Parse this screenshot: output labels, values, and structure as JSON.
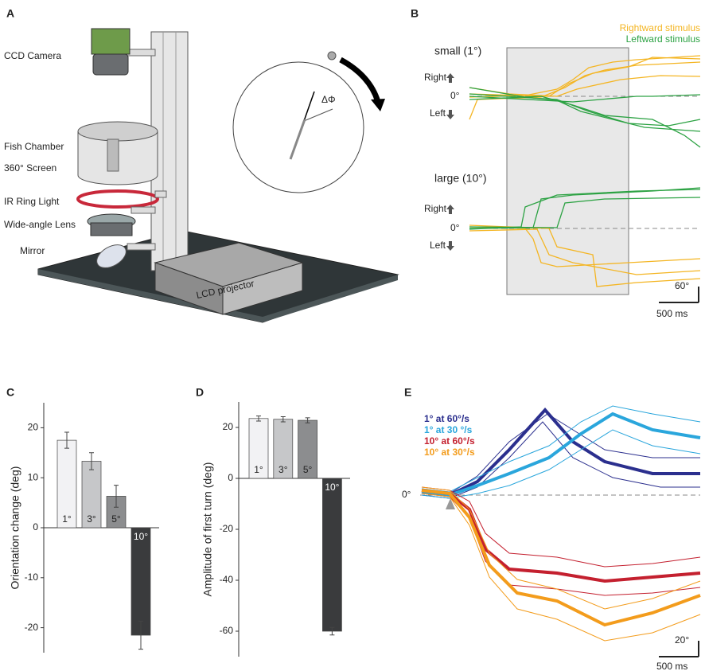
{
  "panel_labels": [
    "A",
    "B",
    "C",
    "D",
    "E"
  ],
  "panel_a": {
    "labels": [
      "CCD Camera",
      "Fish Chamber",
      "360° Screen",
      "IR Ring Light",
      "Wide-angle Lens",
      "Mirror"
    ],
    "projector": "LCD projector",
    "angle": "ΔΦ"
  },
  "panel_b": {
    "legend": [
      "Rightward stimulus",
      "Leftward stimulus"
    ],
    "legend_colors": [
      "#f4b522",
      "#2ca243"
    ],
    "small": "small (1°)",
    "large": "large (10°)",
    "right": "Right",
    "left": "Left",
    "zero": "0°",
    "scale_y": "60°",
    "scale_x": "500 ms"
  },
  "panel_e": {
    "legend": [
      "1° at 60°/s",
      "1° at 30 °/s",
      "10° at 60°/s",
      "10° at 30°/s"
    ],
    "legend_colors": [
      "#2b2f8e",
      "#2aa6dc",
      "#c4202f",
      "#f39c1c"
    ],
    "zero": "0°",
    "scale_y": "20°",
    "scale_x": "500 ms"
  },
  "chart_data": [
    {
      "type": "bar",
      "y_label": "Orientation change (deg)",
      "categories": [
        "1°",
        "3°",
        "5°",
        "10°"
      ],
      "values": [
        17.5,
        13.3,
        6.3,
        -21.5
      ],
      "errors": [
        1.6,
        1.7,
        2.2,
        2.8
      ],
      "colors": [
        "#f2f2f4",
        "#c6c7c9",
        "#8c8d8f",
        "#3a3b3d"
      ],
      "ylim": [
        -25,
        25
      ],
      "yticks": [
        -20,
        -10,
        0,
        10,
        20
      ]
    },
    {
      "type": "bar",
      "y_label": "Amplitude of first turn (deg)",
      "categories": [
        "1°",
        "3°",
        "5°",
        "10°"
      ],
      "values": [
        23.5,
        23.2,
        22.8,
        -60
      ],
      "errors": [
        1,
        1,
        1,
        1.5
      ],
      "colors": [
        "#f2f2f4",
        "#c6c7c9",
        "#8c8d8f",
        "#3a3b3d"
      ],
      "ylim": [
        -70,
        30
      ],
      "yticks": [
        -60,
        -40,
        -20,
        0,
        20
      ]
    }
  ]
}
